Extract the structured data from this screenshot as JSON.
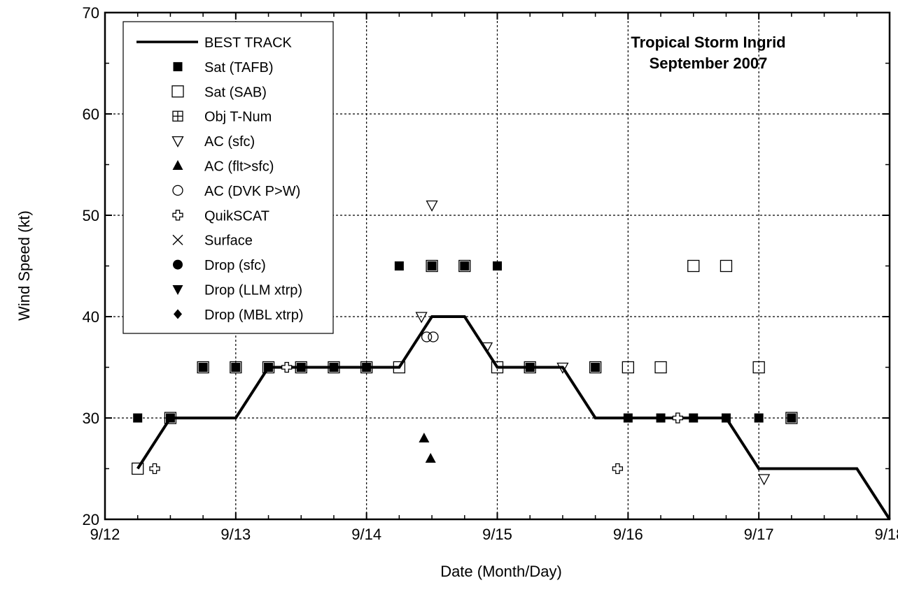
{
  "chart_data": {
    "type": "scatter",
    "title": "Tropical Storm Ingrid",
    "subtitle": "September 2007",
    "xlabel": "Date (Month/Day)",
    "ylabel": "Wind Speed (kt)",
    "x_unit": "day of September 2007",
    "xlim": [
      12,
      18
    ],
    "ylim": [
      20,
      70
    ],
    "x_ticks": [
      {
        "value": 12,
        "label": "9/12"
      },
      {
        "value": 13,
        "label": "9/13"
      },
      {
        "value": 14,
        "label": "9/14"
      },
      {
        "value": 15,
        "label": "9/15"
      },
      {
        "value": 16,
        "label": "9/16"
      },
      {
        "value": 17,
        "label": "9/17"
      },
      {
        "value": 18,
        "label": "9/18"
      }
    ],
    "y_ticks": [
      20,
      30,
      40,
      50,
      60,
      70
    ],
    "grid": true,
    "legend_position": "top-left",
    "colors": {
      "all": "#000000"
    },
    "series": [
      {
        "name": "BEST TRACK",
        "marker": "line",
        "x": [
          12.25,
          12.5,
          12.75,
          13.0,
          13.25,
          13.5,
          13.75,
          14.0,
          14.25,
          14.5,
          14.75,
          15.0,
          15.25,
          15.5,
          15.75,
          16.0,
          16.25,
          16.5,
          16.75,
          17.0,
          17.25,
          17.5,
          17.75,
          18.0
        ],
        "y": [
          25,
          30,
          30,
          30,
          35,
          35,
          35,
          35,
          35,
          40,
          40,
          35,
          35,
          35,
          30,
          30,
          30,
          30,
          30,
          25,
          25,
          25,
          25,
          20
        ]
      },
      {
        "name": "Sat (TAFB)",
        "marker": "square-filled",
        "x": [
          12.25,
          12.5,
          12.75,
          13.0,
          13.25,
          13.5,
          13.75,
          14.0,
          14.25,
          14.5,
          14.75,
          15.0,
          15.25,
          15.75,
          16.0,
          16.25,
          16.5,
          16.75,
          17.0,
          17.25
        ],
        "y": [
          30,
          30,
          35,
          35,
          35,
          35,
          35,
          35,
          45,
          45,
          45,
          45,
          35,
          35,
          30,
          30,
          30,
          30,
          30,
          30
        ]
      },
      {
        "name": "Sat (SAB)",
        "marker": "square-open",
        "x": [
          12.25,
          12.5,
          12.75,
          13.0,
          13.25,
          13.5,
          13.75,
          14.0,
          14.25,
          14.5,
          14.75,
          15.0,
          15.25,
          15.75,
          16.0,
          16.25,
          16.5,
          16.75,
          17.0,
          17.25
        ],
        "y": [
          25,
          30,
          35,
          35,
          35,
          35,
          35,
          35,
          35,
          45,
          45,
          35,
          35,
          35,
          35,
          35,
          45,
          45,
          35,
          30
        ]
      },
      {
        "name": "Obj T-Num",
        "marker": "square-cross",
        "x": [],
        "y": []
      },
      {
        "name": "AC (sfc)",
        "marker": "triangle-down-open",
        "x": [
          14.42,
          14.5,
          14.92,
          15.5,
          17.04
        ],
        "y": [
          40,
          51,
          37,
          35,
          24
        ]
      },
      {
        "name": "AC (flt>sfc)",
        "marker": "triangle-up-filled",
        "x": [
          14.44,
          14.49
        ],
        "y": [
          28,
          26
        ]
      },
      {
        "name": "AC (DVK P>W)",
        "marker": "circle-open",
        "x": [
          14.46,
          14.51
        ],
        "y": [
          38,
          38
        ]
      },
      {
        "name": "QuikSCAT",
        "marker": "plus-open",
        "x": [
          12.38,
          13.39,
          15.92,
          16.38
        ],
        "y": [
          25,
          35,
          25,
          30
        ]
      },
      {
        "name": "Surface",
        "marker": "x",
        "x": [],
        "y": []
      },
      {
        "name": "Drop (sfc)",
        "marker": "circle-filled",
        "x": [],
        "y": []
      },
      {
        "name": "Drop (LLM xtrp)",
        "marker": "triangle-down-filled",
        "x": [],
        "y": []
      },
      {
        "name": "Drop (MBL xtrp)",
        "marker": "diamond-filled",
        "x": [],
        "y": []
      }
    ]
  }
}
